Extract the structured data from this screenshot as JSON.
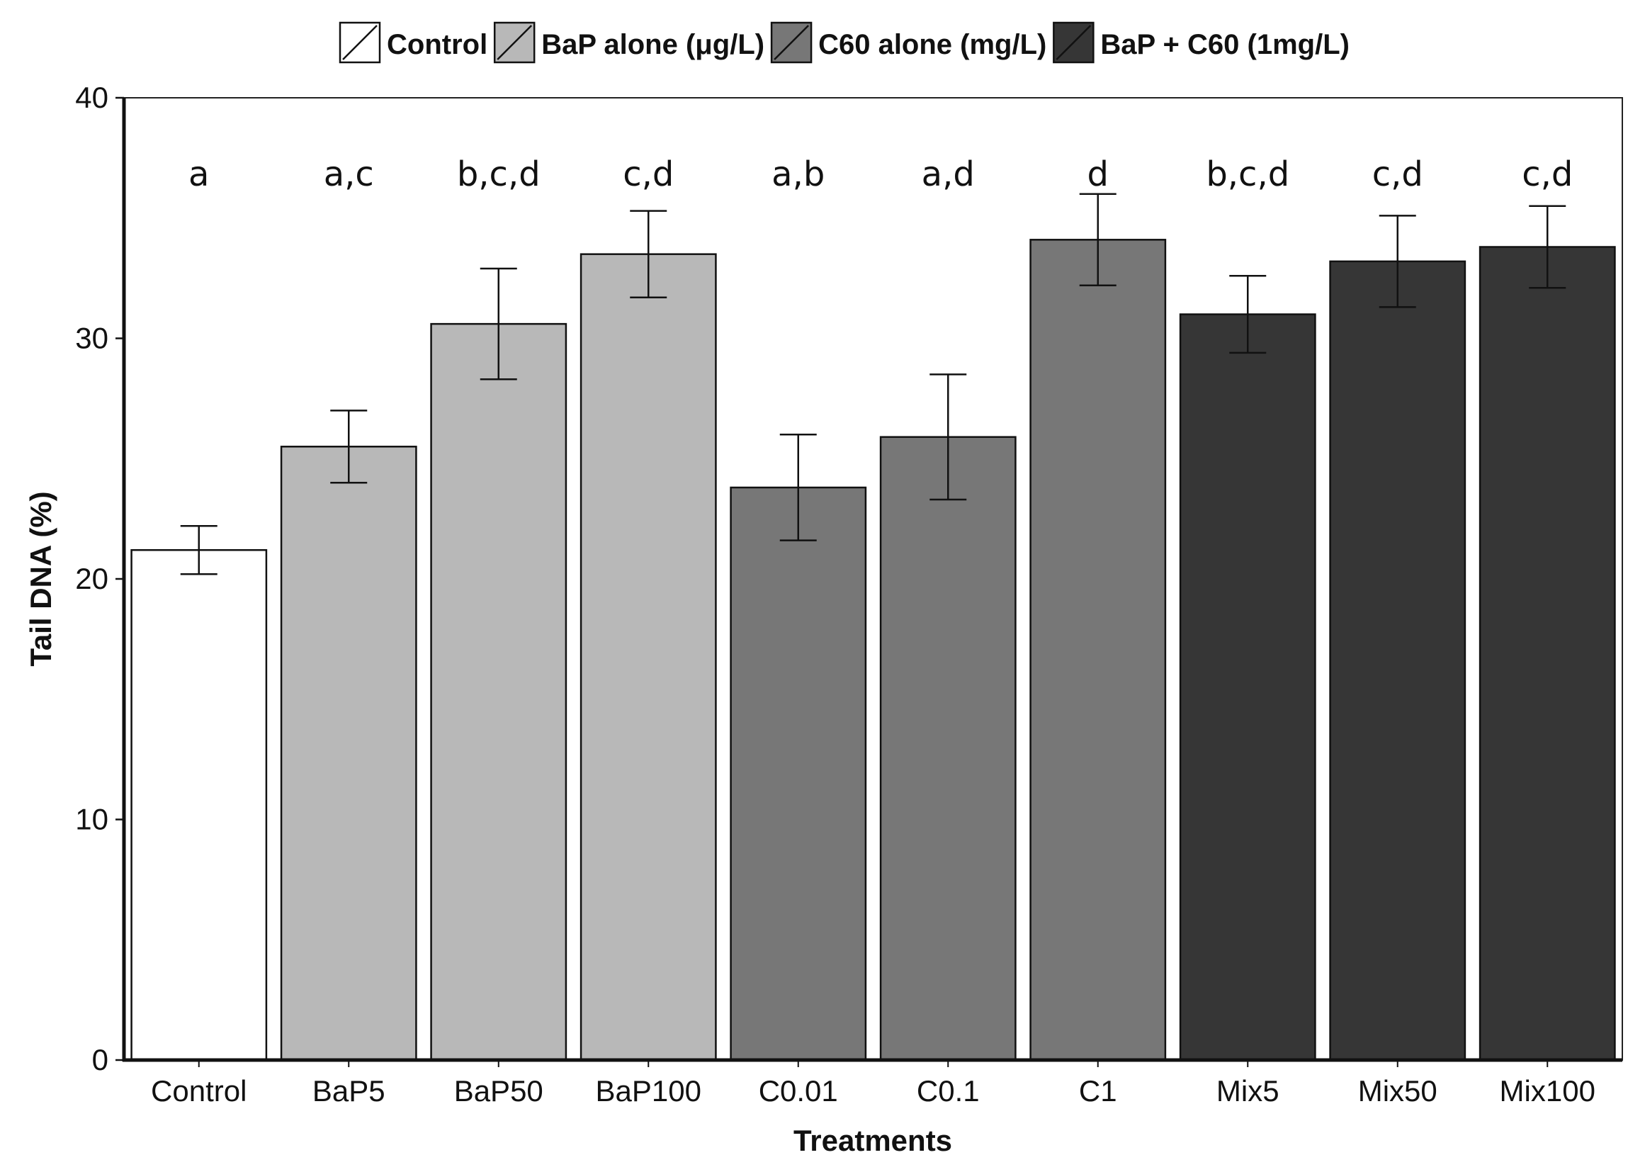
{
  "chart_data": {
    "type": "bar",
    "title": "",
    "xlabel": "Treatments",
    "ylabel": "Tail DNA (%)",
    "ylim": [
      0,
      40
    ],
    "yticks": [
      0,
      10,
      20,
      30,
      40
    ],
    "grid": false,
    "legend_position": "top",
    "categories": [
      "Control",
      "BaP5",
      "BaP50",
      "BaP100",
      "C0.01",
      "C0.1",
      "C1",
      "Mix5",
      "Mix50",
      "Mix100"
    ],
    "values": [
      21.2,
      25.5,
      30.6,
      33.5,
      23.8,
      25.9,
      34.1,
      31.0,
      33.2,
      33.8
    ],
    "errors": [
      1.0,
      1.5,
      2.3,
      1.8,
      2.2,
      2.6,
      1.9,
      1.6,
      1.9,
      1.7
    ],
    "significance": [
      "a",
      "a,c",
      "b,c,d",
      "c,d",
      "a,b",
      "a,d",
      "d",
      "b,c,d",
      "c,d",
      "c,d"
    ],
    "groups": [
      0,
      1,
      1,
      1,
      2,
      2,
      2,
      3,
      3,
      3
    ],
    "legend": [
      {
        "name": "Control",
        "color": "#ffffff"
      },
      {
        "name": "BaP alone (μg/L)",
        "color": "#b8b8b8"
      },
      {
        "name": "C60 alone (mg/L)",
        "color": "#777777"
      },
      {
        "name": "BaP + C60 (1mg/L)",
        "color": "#363636"
      }
    ]
  }
}
